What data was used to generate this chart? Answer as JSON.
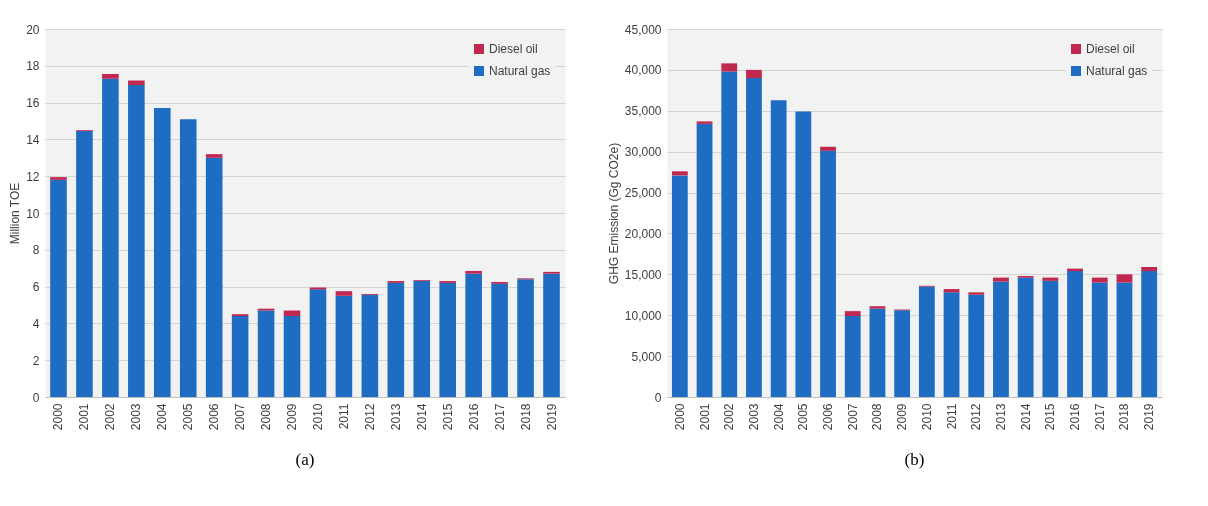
{
  "chart_data": [
    {
      "type": "bar",
      "stacked": true,
      "categories": [
        "2000",
        "2001",
        "2002",
        "2003",
        "2004",
        "2005",
        "2006",
        "2007",
        "2008",
        "2009",
        "2010",
        "2011",
        "2012",
        "2013",
        "2014",
        "2015",
        "2016",
        "2017",
        "2018",
        "2019"
      ],
      "series": [
        {
          "name": "Natural gas",
          "color": "#1f6dc2",
          "values": [
            11.8,
            14.45,
            17.3,
            16.95,
            15.7,
            15.1,
            13.0,
            4.4,
            4.7,
            4.4,
            5.85,
            5.5,
            5.55,
            6.2,
            6.3,
            6.2,
            6.7,
            6.15,
            6.4,
            6.7
          ]
        },
        {
          "name": "Diesel oil",
          "color": "#c0284f",
          "values": [
            0.15,
            0.05,
            0.25,
            0.25,
            0,
            0,
            0.2,
            0.1,
            0.1,
            0.3,
            0.1,
            0.25,
            0.05,
            0.1,
            0.05,
            0.1,
            0.15,
            0.1,
            0.05,
            0.1
          ]
        }
      ],
      "ylabel": "Million TOE",
      "ylim": [
        0,
        20
      ],
      "yticks": [
        0,
        2,
        4,
        6,
        8,
        10,
        12,
        14,
        16,
        18,
        20
      ],
      "grid": "y",
      "legend": "top right",
      "annotations": [
        "(a)"
      ]
    },
    {
      "type": "bar",
      "stacked": true,
      "categories": [
        "2000",
        "2001",
        "2002",
        "2003",
        "2004",
        "2005",
        "2006",
        "2007",
        "2008",
        "2009",
        "2010",
        "2011",
        "2012",
        "2013",
        "2014",
        "2015",
        "2016",
        "2017",
        "2018",
        "2019"
      ],
      "series": [
        {
          "name": "Natural gas",
          "color": "#1f6dc2",
          "values": [
            27100,
            33400,
            39800,
            39000,
            36300,
            34900,
            30100,
            9900,
            10800,
            10600,
            13500,
            12800,
            12500,
            14100,
            14600,
            14200,
            15400,
            14000,
            14000,
            15400
          ]
        },
        {
          "name": "Diesel oil",
          "color": "#c0284f",
          "values": [
            500,
            300,
            1000,
            1000,
            0,
            0,
            500,
            600,
            300,
            100,
            100,
            400,
            300,
            500,
            200,
            400,
            300,
            600,
            1000,
            500
          ]
        }
      ],
      "ylabel": "GHG Emission (Gg CO2e)",
      "ylim": [
        0,
        45000
      ],
      "yticks": [
        0,
        {
          "value": 5000,
          "label": "5,000"
        },
        {
          "value": 10000,
          "label": "10,000"
        },
        {
          "value": 15000,
          "label": "15,000"
        },
        {
          "value": 20000,
          "label": "20,000"
        },
        {
          "value": 25000,
          "label": "25,000"
        },
        {
          "value": 30000,
          "label": "30,000"
        },
        {
          "value": 35000,
          "label": "35,000"
        },
        {
          "value": 40000,
          "label": "40,000"
        },
        {
          "value": 45000,
          "label": "45,000"
        }
      ],
      "grid": "y",
      "legend": "top right",
      "annotations": [
        "(b)"
      ]
    }
  ]
}
